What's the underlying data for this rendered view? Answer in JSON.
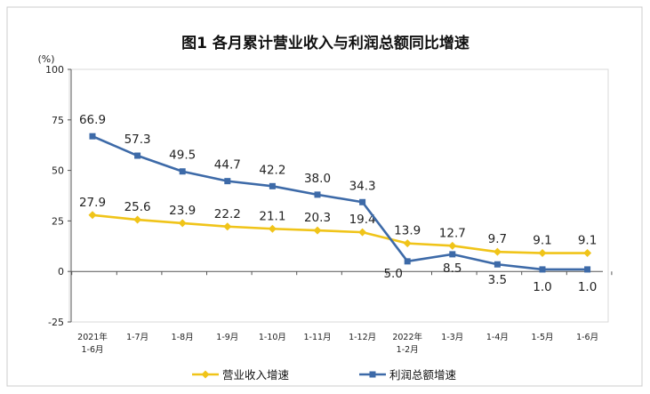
{
  "colors": {
    "revenue": "#f0c419",
    "profit": "#3d6aa8",
    "axis": "#555555",
    "frame": "#cccccc"
  },
  "chart_data": {
    "type": "line",
    "title": "图1  各月累计营业收入与利润总额同比增速",
    "ylabel": "(%)",
    "ylim": [
      -25,
      100
    ],
    "yticks": [
      -25,
      0,
      25,
      50,
      75,
      100
    ],
    "grid": false,
    "legend_position": "bottom",
    "categories": [
      [
        "2021年",
        "1-6月"
      ],
      [
        "1-7月"
      ],
      [
        "1-8月"
      ],
      [
        "1-9月"
      ],
      [
        "1-10月"
      ],
      [
        "1-11月"
      ],
      [
        "1-12月"
      ],
      [
        "2022年",
        "1-2月"
      ],
      [
        "1-3月"
      ],
      [
        "1-4月"
      ],
      [
        "1-5月"
      ],
      [
        "1-6月"
      ]
    ],
    "series": [
      {
        "name": "营业收入增速",
        "colorKey": "revenue",
        "labelPos": "above",
        "values": [
          27.9,
          25.6,
          23.9,
          22.2,
          21.1,
          20.3,
          19.4,
          13.9,
          12.7,
          9.7,
          9.1,
          9.1
        ]
      },
      {
        "name": "利润总额增速",
        "colorKey": "profit",
        "labelPos": "mixed",
        "values": [
          66.9,
          57.3,
          49.5,
          44.7,
          42.2,
          38.0,
          34.3,
          5.0,
          8.5,
          3.5,
          1.0,
          1.0
        ]
      }
    ]
  }
}
